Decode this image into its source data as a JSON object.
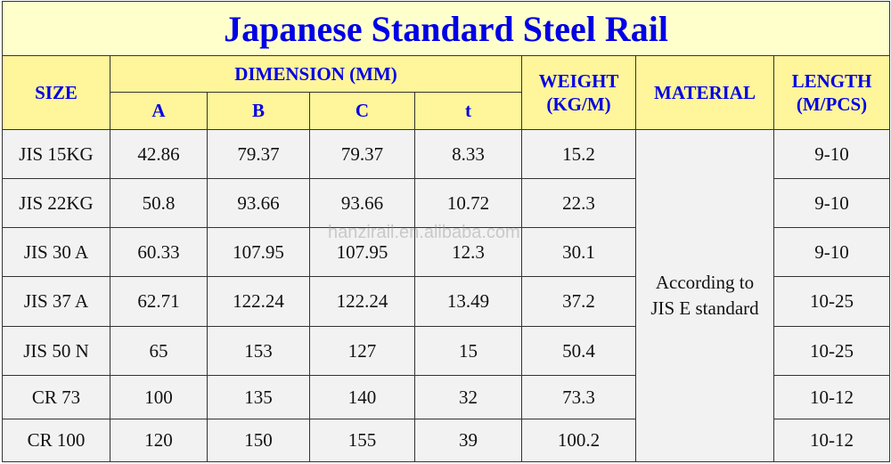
{
  "title": "Japanese Standard Steel Rail",
  "headers": {
    "size": "SIZE",
    "dimension": "DIMENSION (MM)",
    "a": "A",
    "b": "B",
    "c": "C",
    "t": "t",
    "weight_line1": "WEIGHT",
    "weight_line2": "(KG/M)",
    "material": "MATERIAL",
    "length_line1": "LENGTH",
    "length_line2": "(M/PCS)"
  },
  "material_note_line1": "According to",
  "material_note_line2": "JIS E standard",
  "rows": [
    {
      "size": "JIS 15KG",
      "a": "42.86",
      "b": "79.37",
      "c": "79.37",
      "t": "8.33",
      "weight": "15.2",
      "length": "9-10"
    },
    {
      "size": "JIS 22KG",
      "a": "50.8",
      "b": "93.66",
      "c": "93.66",
      "t": "10.72",
      "weight": "22.3",
      "length": "9-10"
    },
    {
      "size": "JIS 30 A",
      "a": "60.33",
      "b": "107.95",
      "c": "107.95",
      "t": "12.3",
      "weight": "30.1",
      "length": "9-10"
    },
    {
      "size": "JIS 37 A",
      "a": "62.71",
      "b": "122.24",
      "c": "122.24",
      "t": "13.49",
      "weight": "37.2",
      "length": "10-25"
    },
    {
      "size": "JIS 50 N",
      "a": "65",
      "b": "153",
      "c": "127",
      "t": "15",
      "weight": "50.4",
      "length": "10-25"
    },
    {
      "size": "CR 73",
      "a": "100",
      "b": "135",
      "c": "140",
      "t": "32",
      "weight": "73.3",
      "length": "10-12"
    },
    {
      "size": "CR 100",
      "a": "120",
      "b": "150",
      "c": "155",
      "t": "39",
      "weight": "100.2",
      "length": "10-12"
    }
  ],
  "watermark": "hanzirail.en.alibaba.com",
  "colors": {
    "title_bg": "#ffffcc",
    "header_bg": "#fff59a",
    "header_text": "#0000e6",
    "body_bg": "#f2f2f2"
  }
}
